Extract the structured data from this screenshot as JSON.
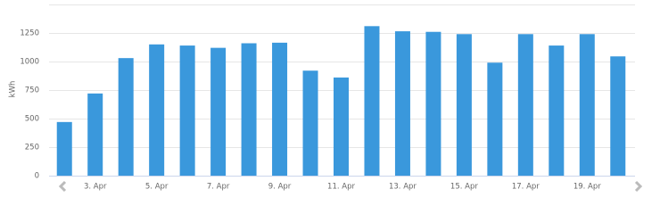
{
  "chart_data": {
    "type": "bar",
    "y_label": "kWh",
    "categories": [
      null,
      "3. Apr",
      null,
      "5. Apr",
      null,
      "7. Apr",
      null,
      "9. Apr",
      null,
      "11. Apr",
      null,
      "13. Apr",
      null,
      "15. Apr",
      null,
      "17. Apr",
      null,
      "19. Apr",
      null
    ],
    "values": [
      470,
      720,
      1030,
      1150,
      1140,
      1120,
      1160,
      1165,
      920,
      860,
      1310,
      1265,
      1260,
      1240,
      990,
      1240,
      1140,
      1240,
      1045
    ],
    "color": "#3a98dc",
    "ylim": [
      0,
      1500
    ],
    "yticks": [
      0,
      250,
      500,
      750,
      1000,
      1250
    ],
    "grid": true
  }
}
